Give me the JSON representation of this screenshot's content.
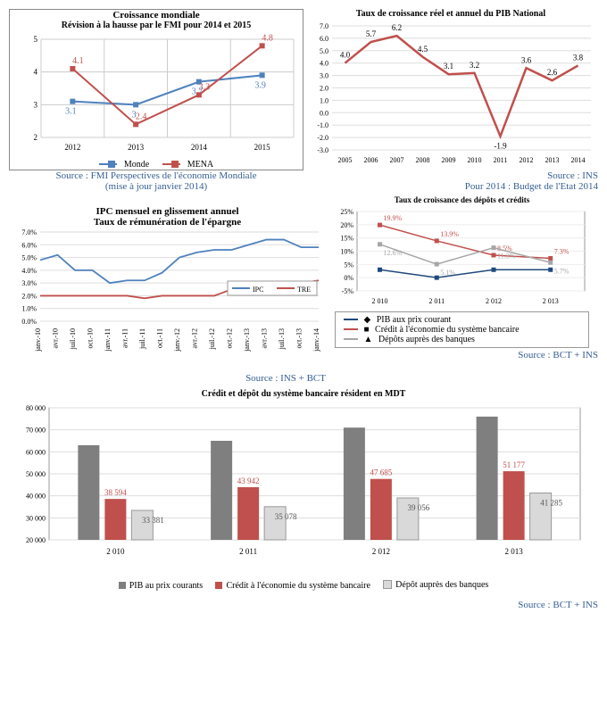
{
  "chart1": {
    "type": "line",
    "title": "Croissance mondiale",
    "subtitle": "Révision à la hausse par le FMI pour 2014 et 2015",
    "x": [
      "2012",
      "2013",
      "2014",
      "2015"
    ],
    "series": [
      {
        "name": "Monde",
        "color": "#4f81bd",
        "marker": "square",
        "values": [
          3.1,
          3,
          3.7,
          3.9
        ]
      },
      {
        "name": "MENA",
        "color": "#c0504d",
        "marker": "square",
        "values": [
          4.1,
          2.4,
          3.3,
          4.8
        ]
      }
    ],
    "ylim": [
      2,
      5
    ],
    "ystep": 1,
    "source": "Source : FMI Perspectives de l'économie Mondiale",
    "source2": "(mise à jour janvier 2014)"
  },
  "chart2": {
    "type": "line",
    "title": "Taux de croissance réel et annuel du PIB National",
    "x": [
      "2005",
      "2006",
      "2007",
      "2008",
      "2009",
      "2010",
      "2011",
      "2012",
      "2013",
      "2014"
    ],
    "series": [
      {
        "name": "PIB",
        "color": "#c0504d",
        "values": [
          4.0,
          5.7,
          6.2,
          4.5,
          3.1,
          3.2,
          -1.9,
          3.6,
          2.6,
          3.8
        ]
      }
    ],
    "ylim": [
      -3,
      7
    ],
    "ystep": 1,
    "source": "Source : INS",
    "source2": "Pour 2014 : Budget de l'Etat 2014"
  },
  "chart3": {
    "type": "line",
    "title": "IPC mensuel en glissement annuel",
    "subtitle": "Taux de rémunération de l'épargne",
    "x": [
      "janv.-10",
      "avr.-10",
      "juil.-10",
      "oct.-10",
      "janv.-11",
      "avr.-11",
      "juil.-11",
      "oct.-11",
      "janv.-12",
      "avr.-12",
      "juil.-12",
      "oct.-12",
      "janv.-13",
      "avr.-13",
      "juil.-13",
      "oct.-13",
      "janv.-14"
    ],
    "series": [
      {
        "name": "IPC",
        "color": "#4f81bd",
        "values": [
          4.8,
          5.2,
          4.0,
          4.0,
          3.0,
          3.2,
          3.2,
          3.8,
          5.0,
          5.4,
          5.6,
          5.6,
          6.0,
          6.4,
          6.4,
          5.8,
          5.8
        ]
      },
      {
        "name": "TRE",
        "color": "#c0504d",
        "values": [
          2.0,
          2.0,
          2.0,
          2.0,
          2.0,
          2.0,
          1.8,
          2.0,
          2.0,
          2.0,
          2.0,
          2.5,
          2.5,
          2.8,
          2.8,
          3.0,
          3.2
        ]
      }
    ],
    "ylim": [
      0,
      7
    ],
    "ystep": 1,
    "ysuffix": "%",
    "source": "Source : INS + BCT"
  },
  "chart4": {
    "type": "line",
    "title": "Taux de croissance des dépôts et crédits",
    "x": [
      "2 010",
      "2 011",
      "2 012",
      "2 013"
    ],
    "series": [
      {
        "name": "PIB aux prix courant",
        "color": "#1f497d",
        "marker": "diamond",
        "values": [
          3,
          0,
          3,
          3
        ]
      },
      {
        "name": "Crédit à l'économie du système bancaire",
        "color": "#c0504d",
        "marker": "square",
        "values": [
          19.9,
          13.9,
          8.5,
          7.3
        ],
        "labels": [
          "19.9%",
          "13.9%",
          "8.5%",
          "7.3%"
        ]
      },
      {
        "name": "Dépôts auprès des banques",
        "color": "#a6a6a6",
        "marker": "triangle",
        "values": [
          12.6,
          5.1,
          11.3,
          5.7
        ],
        "labels": [
          "12.6%",
          "5.1%",
          "11.3%",
          "5.7%"
        ]
      }
    ],
    "ylim": [
      -5,
      25
    ],
    "ystep": 5,
    "ysuffix": "%",
    "source": "Source : BCT + INS"
  },
  "chart5": {
    "type": "bar",
    "title": "Crédit et dépôt du système bancaire résident en MDT",
    "x": [
      "2 010",
      "2 011",
      "2 012",
      "2 013"
    ],
    "series": [
      {
        "name": "PIB au prix courants",
        "color": "#7f7f7f",
        "values": [
          63000,
          65000,
          71000,
          76000
        ]
      },
      {
        "name": "Crédit à l'économie du système bancaire",
        "color": "#c0504d",
        "values": [
          38594,
          43942,
          47685,
          51177
        ],
        "labels": [
          "38 594",
          "43 942",
          "47 685",
          "51 177"
        ]
      },
      {
        "name": "Dépôt auprès des banques",
        "color": "#d9d9d9",
        "values": [
          33381,
          35078,
          39056,
          41285
        ],
        "labels": [
          "33 381",
          "35 078",
          "39 056",
          "41 285"
        ]
      }
    ],
    "ylim": [
      20000,
      80000
    ],
    "ystep": 10000,
    "source": "Source : BCT + INS"
  }
}
